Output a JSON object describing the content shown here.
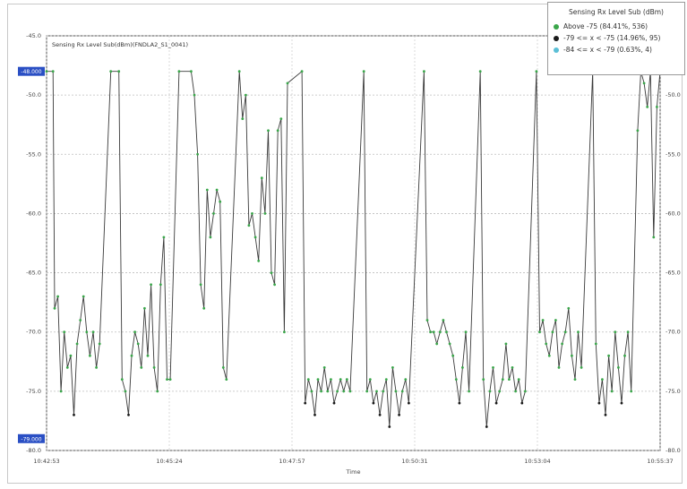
{
  "chart_data": {
    "type": "line",
    "title": "Sensing Rx Level Sub (dBm)",
    "series_label": "Sensing Rx Level Sub(dBm)(FNDLA2_S1_0041)",
    "xlabel": "Time",
    "x_ticks": [
      "10:42:53",
      "10:45:24",
      "10:47:57",
      "10:50:31",
      "10:53:04",
      "10:55:37"
    ],
    "y_ticks_left": [
      "-45.0",
      "-50.0",
      "-55.0",
      "-60.0",
      "-65.0",
      "-70.0",
      "-75.0",
      "-80.0"
    ],
    "y_ticks_right": [
      "-45.0",
      "-50.0",
      "-55.0",
      "-60.0",
      "-65.0",
      "-70.0",
      "-75.0",
      "-80.0"
    ],
    "y_range": [
      -80,
      -45
    ],
    "x_range_seconds": [
      0,
      764
    ],
    "selection_top_label": "-48.000",
    "selection_bottom_label": "-79.000",
    "legend": [
      {
        "label": "Above -75 (84.41%, 536)",
        "color": "#3aa64a"
      },
      {
        "label": "-79 <= x < -75 (14.96%, 95)",
        "color": "#1a1a1a"
      },
      {
        "label": "-84 <= x < -79 (0.63%, 4)",
        "color": "#5bbfd6"
      }
    ],
    "grid": true,
    "legend_position": "top-right",
    "points": [
      [
        0,
        -48
      ],
      [
        8,
        -48
      ],
      [
        10,
        -68
      ],
      [
        14,
        -67
      ],
      [
        18,
        -75
      ],
      [
        22,
        -70
      ],
      [
        26,
        -73
      ],
      [
        30,
        -72
      ],
      [
        34,
        -77
      ],
      [
        38,
        -71
      ],
      [
        42,
        -69
      ],
      [
        46,
        -67
      ],
      [
        50,
        -70
      ],
      [
        54,
        -72
      ],
      [
        58,
        -70
      ],
      [
        62,
        -73
      ],
      [
        66,
        -71
      ],
      [
        80,
        -48
      ],
      [
        90,
        -48
      ],
      [
        94,
        -74
      ],
      [
        98,
        -75
      ],
      [
        102,
        -77
      ],
      [
        106,
        -72
      ],
      [
        110,
        -70
      ],
      [
        114,
        -71
      ],
      [
        118,
        -73
      ],
      [
        122,
        -68
      ],
      [
        126,
        -72
      ],
      [
        130,
        -66
      ],
      [
        134,
        -73
      ],
      [
        138,
        -75
      ],
      [
        142,
        -66
      ],
      [
        146,
        -62
      ],
      [
        150,
        -74
      ],
      [
        154,
        -74
      ],
      [
        165,
        -48
      ],
      [
        180,
        -48
      ],
      [
        184,
        -50
      ],
      [
        188,
        -55
      ],
      [
        192,
        -66
      ],
      [
        196,
        -68
      ],
      [
        200,
        -58
      ],
      [
        204,
        -62
      ],
      [
        208,
        -60
      ],
      [
        212,
        -58
      ],
      [
        216,
        -59
      ],
      [
        220,
        -73
      ],
      [
        224,
        -74
      ],
      [
        240,
        -48
      ],
      [
        244,
        -52
      ],
      [
        248,
        -50
      ],
      [
        252,
        -61
      ],
      [
        256,
        -60
      ],
      [
        260,
        -62
      ],
      [
        264,
        -64
      ],
      [
        268,
        -57
      ],
      [
        272,
        -60
      ],
      [
        276,
        -53
      ],
      [
        280,
        -65
      ],
      [
        284,
        -66
      ],
      [
        288,
        -53
      ],
      [
        292,
        -52
      ],
      [
        296,
        -70
      ],
      [
        300,
        -49
      ],
      [
        318,
        -48
      ],
      [
        322,
        -76
      ],
      [
        326,
        -74
      ],
      [
        330,
        -75
      ],
      [
        334,
        -77
      ],
      [
        338,
        -74
      ],
      [
        342,
        -75
      ],
      [
        346,
        -73
      ],
      [
        350,
        -75
      ],
      [
        354,
        -74
      ],
      [
        358,
        -76
      ],
      [
        362,
        -75
      ],
      [
        366,
        -74
      ],
      [
        370,
        -75
      ],
      [
        374,
        -74
      ],
      [
        378,
        -75
      ],
      [
        395,
        -48
      ],
      [
        399,
        -75
      ],
      [
        403,
        -74
      ],
      [
        407,
        -76
      ],
      [
        411,
        -75
      ],
      [
        415,
        -77
      ],
      [
        419,
        -75
      ],
      [
        423,
        -74
      ],
      [
        427,
        -78
      ],
      [
        431,
        -73
      ],
      [
        435,
        -75
      ],
      [
        439,
        -77
      ],
      [
        443,
        -75
      ],
      [
        447,
        -74
      ],
      [
        451,
        -76
      ],
      [
        470,
        -48
      ],
      [
        474,
        -69
      ],
      [
        478,
        -70
      ],
      [
        482,
        -70
      ],
      [
        486,
        -71
      ],
      [
        490,
        -70
      ],
      [
        494,
        -69
      ],
      [
        498,
        -70
      ],
      [
        502,
        -71
      ],
      [
        506,
        -72
      ],
      [
        510,
        -74
      ],
      [
        514,
        -76
      ],
      [
        518,
        -73
      ],
      [
        522,
        -70
      ],
      [
        526,
        -75
      ],
      [
        540,
        -48
      ],
      [
        544,
        -74
      ],
      [
        548,
        -78
      ],
      [
        552,
        -75
      ],
      [
        556,
        -73
      ],
      [
        560,
        -76
      ],
      [
        564,
        -75
      ],
      [
        568,
        -74
      ],
      [
        572,
        -71
      ],
      [
        576,
        -74
      ],
      [
        580,
        -73
      ],
      [
        584,
        -75
      ],
      [
        588,
        -74
      ],
      [
        592,
        -76
      ],
      [
        596,
        -75
      ],
      [
        610,
        -48
      ],
      [
        614,
        -70
      ],
      [
        618,
        -69
      ],
      [
        622,
        -71
      ],
      [
        626,
        -72
      ],
      [
        630,
        -70
      ],
      [
        634,
        -69
      ],
      [
        638,
        -73
      ],
      [
        642,
        -71
      ],
      [
        646,
        -70
      ],
      [
        650,
        -68
      ],
      [
        654,
        -72
      ],
      [
        658,
        -74
      ],
      [
        662,
        -70
      ],
      [
        666,
        -73
      ],
      [
        680,
        -48
      ],
      [
        684,
        -71
      ],
      [
        688,
        -76
      ],
      [
        692,
        -74
      ],
      [
        696,
        -77
      ],
      [
        700,
        -72
      ],
      [
        704,
        -75
      ],
      [
        708,
        -70
      ],
      [
        712,
        -73
      ],
      [
        716,
        -76
      ],
      [
        720,
        -72
      ],
      [
        724,
        -70
      ],
      [
        728,
        -75
      ],
      [
        736,
        -53
      ],
      [
        740,
        -48
      ],
      [
        744,
        -49
      ],
      [
        748,
        -51
      ],
      [
        752,
        -48
      ],
      [
        756,
        -62
      ],
      [
        760,
        -51
      ],
      [
        764,
        -48
      ]
    ]
  }
}
